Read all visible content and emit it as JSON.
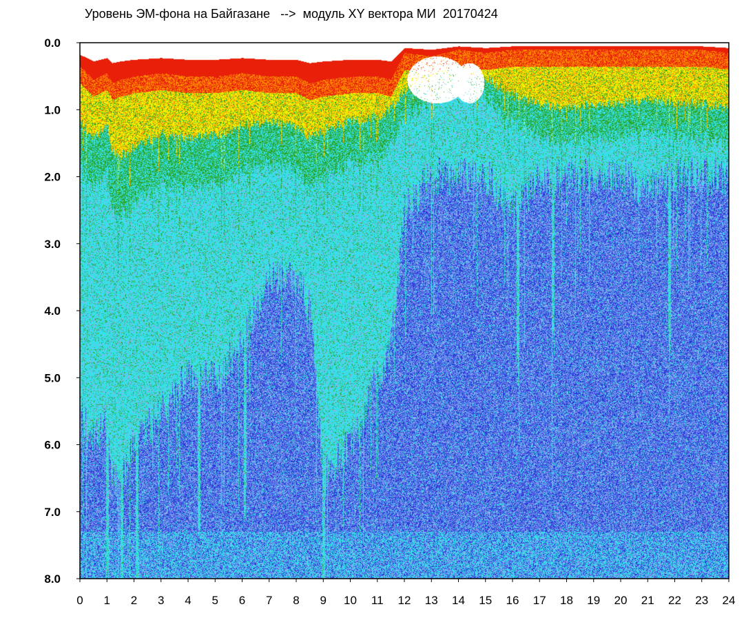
{
  "chart_data": {
    "type": "heatmap",
    "title": "Уровень ЭМ-фона на Байгазане   -->  модуль XY вектора МИ  20170424",
    "xlabel": "",
    "ylabel": "",
    "xlim": [
      0,
      24
    ],
    "ylim": [
      8.0,
      0.0
    ],
    "y_axis_inverted": true,
    "x_tick_labels": [
      "0",
      "1",
      "2",
      "3",
      "4",
      "5",
      "6",
      "7",
      "8",
      "9",
      "10",
      "11",
      "12",
      "13",
      "14",
      "15",
      "16",
      "17",
      "18",
      "19",
      "20",
      "21",
      "22",
      "23",
      "24"
    ],
    "y_tick_labels": [
      "0.0",
      "1.0",
      "2.0",
      "3.0",
      "4.0",
      "5.0",
      "6.0",
      "7.0",
      "8.0"
    ],
    "color_scale": [
      "#2a35d8",
      "#5a7ae6",
      "#9aaaf0",
      "#35e0e8",
      "#2aa52a",
      "#f5f000",
      "#ff8c00",
      "#e8200a",
      "#ffffff"
    ],
    "grid": false,
    "legend": "none",
    "upper_boundary_profile": {
      "hours": [
        0,
        0.5,
        1,
        1.2,
        1.5,
        2,
        3,
        4,
        5,
        6,
        7,
        8,
        8.5,
        9,
        10,
        11,
        11.5,
        12,
        13,
        14,
        15,
        16,
        17,
        18,
        19,
        20,
        21,
        22,
        23,
        24
      ],
      "red_edge": [
        0.35,
        0.55,
        0.45,
        0.6,
        0.55,
        0.5,
        0.45,
        0.5,
        0.5,
        0.45,
        0.5,
        0.5,
        0.6,
        0.55,
        0.5,
        0.5,
        0.55,
        0.15,
        0.2,
        0.1,
        0.15,
        0.1,
        0.1,
        0.1,
        0.1,
        0.1,
        0.1,
        0.1,
        0.1,
        0.15
      ],
      "green_edge": [
        1.8,
        2.2,
        1.9,
        2.5,
        2.6,
        2.4,
        2.1,
        2.2,
        2.1,
        1.9,
        1.8,
        1.9,
        2.2,
        2.0,
        1.8,
        1.7,
        1.5,
        1.1,
        0.9,
        0.6,
        0.8,
        1.2,
        1.4,
        1.5,
        1.4,
        1.4,
        1.3,
        1.4,
        1.4,
        1.5
      ],
      "cyan_edge": [
        5.5,
        6.0,
        5.5,
        6.5,
        6.5,
        6.0,
        5.5,
        5.0,
        5.0,
        4.5,
        3.5,
        3.5,
        4.0,
        6.5,
        6.0,
        5.0,
        4.5,
        2.5,
        2.0,
        2.0,
        2.0,
        2.5,
        2.0,
        2.0,
        2.0,
        2.0,
        2.2,
        2.0,
        2.0,
        2.0
      ]
    }
  }
}
